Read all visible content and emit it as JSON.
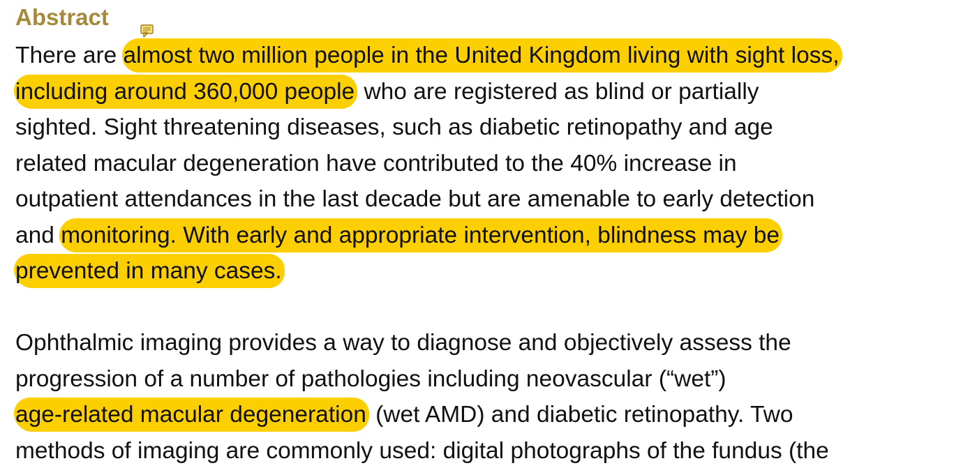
{
  "document": {
    "heading": "Abstract",
    "note_icon": "comment-note-icon",
    "highlight_color": "#fccf02",
    "heading_color": "#a58a3c",
    "paragraph1": {
      "line1_plain": "There are ",
      "line1_hl": "almost two million people in the United Kingdom living with sight loss,",
      "line2_hl": "including around 360,000 people",
      "line2_plain": " who are registered as blind or partially",
      "line3": "sighted. Sight threatening diseases, such as diabetic retinopathy and age",
      "line4": "related macular degeneration have contributed to the 40% increase in",
      "line5": "outpatient attendances in the last decade but are amenable to early detection",
      "line6_plain": "and ",
      "line6_hl": "monitoring. With early and appropriate intervention, blindness may be",
      "line7_hl": "prevented in many cases."
    },
    "paragraph2": {
      "line1": "Ophthalmic imaging provides a way to diagnose and objectively assess the",
      "line2": "progression of a number of pathologies including neovascular (“wet”)",
      "line3_hl": "age-related macular degeneration",
      "line3_plain": " (wet AMD) and diabetic retinopathy. Two",
      "line4": "methods of imaging are commonly used: digital photographs of the fundus (the"
    }
  }
}
